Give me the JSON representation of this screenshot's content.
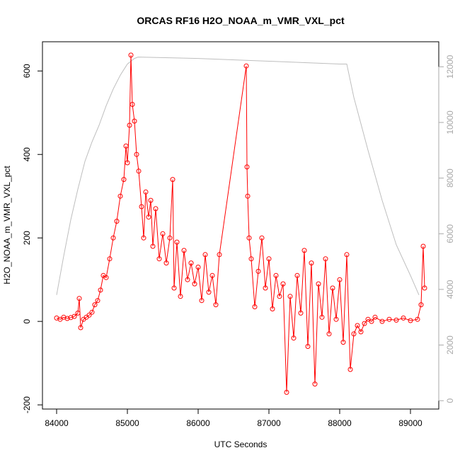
{
  "chart_data": {
    "type": "line",
    "title": "ORCAS RF16 H2O_NOAA_m_VMR_VXL_pct",
    "xlabel": "UTC Seconds",
    "ylabel": "H2O_NOAA_m_VMR_VXL_pct",
    "xlim": [
      83800,
      89400
    ],
    "ylim": [
      -210,
      670
    ],
    "y2lim": [
      -300,
      12900
    ],
    "x_ticks": [
      84000,
      85000,
      86000,
      87000,
      88000,
      89000
    ],
    "y_ticks": [
      -200,
      0,
      200,
      400,
      600
    ],
    "y2_ticks": [
      0,
      2000,
      4000,
      6000,
      8000,
      10000,
      12000
    ],
    "grid": false,
    "colors": {
      "primary": "#ff0000",
      "secondary": "#bebebe",
      "right_axis": "#a8a8a8"
    },
    "series": [
      {
        "axis": "left",
        "style": "line+circles",
        "points": [
          [
            84000,
            8
          ],
          [
            84050,
            5
          ],
          [
            84100,
            10
          ],
          [
            84150,
            7
          ],
          [
            84200,
            9
          ],
          [
            84250,
            12
          ],
          [
            84300,
            20
          ],
          [
            84320,
            55
          ],
          [
            84340,
            -15
          ],
          [
            84380,
            5
          ],
          [
            84420,
            10
          ],
          [
            84460,
            15
          ],
          [
            84500,
            22
          ],
          [
            84540,
            40
          ],
          [
            84580,
            50
          ],
          [
            84620,
            75
          ],
          [
            84660,
            110
          ],
          [
            84700,
            105
          ],
          [
            84750,
            150
          ],
          [
            84800,
            200
          ],
          [
            84850,
            240
          ],
          [
            84900,
            300
          ],
          [
            84950,
            340
          ],
          [
            84980,
            420
          ],
          [
            85000,
            380
          ],
          [
            85030,
            470
          ],
          [
            85050,
            638
          ],
          [
            85070,
            520
          ],
          [
            85100,
            480
          ],
          [
            85130,
            400
          ],
          [
            85160,
            360
          ],
          [
            85200,
            275
          ],
          [
            85230,
            200
          ],
          [
            85260,
            310
          ],
          [
            85300,
            250
          ],
          [
            85330,
            290
          ],
          [
            85360,
            180
          ],
          [
            85400,
            270
          ],
          [
            85450,
            150
          ],
          [
            85500,
            210
          ],
          [
            85550,
            140
          ],
          [
            85600,
            200
          ],
          [
            85640,
            340
          ],
          [
            85660,
            80
          ],
          [
            85700,
            190
          ],
          [
            85750,
            60
          ],
          [
            85800,
            170
          ],
          [
            85850,
            100
          ],
          [
            85900,
            140
          ],
          [
            85950,
            90
          ],
          [
            86000,
            130
          ],
          [
            86050,
            50
          ],
          [
            86100,
            160
          ],
          [
            86150,
            70
          ],
          [
            86200,
            110
          ],
          [
            86250,
            40
          ],
          [
            86300,
            160
          ],
          [
            86680,
            612
          ],
          [
            86690,
            370
          ],
          [
            86700,
            300
          ],
          [
            86720,
            200
          ],
          [
            86750,
            150
          ],
          [
            86800,
            35
          ],
          [
            86850,
            120
          ],
          [
            86900,
            200
          ],
          [
            86950,
            80
          ],
          [
            87000,
            150
          ],
          [
            87050,
            30
          ],
          [
            87100,
            110
          ],
          [
            87150,
            60
          ],
          [
            87200,
            90
          ],
          [
            87250,
            -170
          ],
          [
            87300,
            60
          ],
          [
            87350,
            -40
          ],
          [
            87400,
            110
          ],
          [
            87450,
            20
          ],
          [
            87500,
            170
          ],
          [
            87550,
            -60
          ],
          [
            87600,
            140
          ],
          [
            87650,
            -150
          ],
          [
            87700,
            90
          ],
          [
            87750,
            10
          ],
          [
            87800,
            150
          ],
          [
            87850,
            -30
          ],
          [
            87900,
            80
          ],
          [
            87950,
            5
          ],
          [
            88000,
            100
          ],
          [
            88050,
            -50
          ],
          [
            88100,
            160
          ],
          [
            88150,
            -115
          ],
          [
            88200,
            -30
          ],
          [
            88250,
            -10
          ],
          [
            88300,
            -25
          ],
          [
            88350,
            -5
          ],
          [
            88400,
            5
          ],
          [
            88450,
            0
          ],
          [
            88500,
            10
          ],
          [
            88600,
            0
          ],
          [
            88700,
            5
          ],
          [
            88800,
            3
          ],
          [
            88900,
            8
          ],
          [
            89000,
            2
          ],
          [
            89100,
            5
          ],
          [
            89150,
            40
          ],
          [
            89180,
            180
          ],
          [
            89200,
            80
          ]
        ]
      },
      {
        "axis": "right",
        "style": "line",
        "color": "gray",
        "points": [
          [
            84000,
            3800
          ],
          [
            84100,
            5200
          ],
          [
            84200,
            6500
          ],
          [
            84300,
            7600
          ],
          [
            84400,
            8600
          ],
          [
            84500,
            9300
          ],
          [
            84600,
            9900
          ],
          [
            84700,
            10600
          ],
          [
            84800,
            11200
          ],
          [
            84900,
            11700
          ],
          [
            85000,
            12100
          ],
          [
            85100,
            12300
          ],
          [
            85150,
            12350
          ],
          [
            86000,
            12300
          ],
          [
            87000,
            12200
          ],
          [
            88000,
            12100
          ],
          [
            88100,
            12100
          ],
          [
            88200,
            10900
          ],
          [
            88400,
            9000
          ],
          [
            88600,
            7200
          ],
          [
            88800,
            5600
          ],
          [
            89000,
            4500
          ],
          [
            89120,
            3800
          ]
        ]
      }
    ]
  }
}
